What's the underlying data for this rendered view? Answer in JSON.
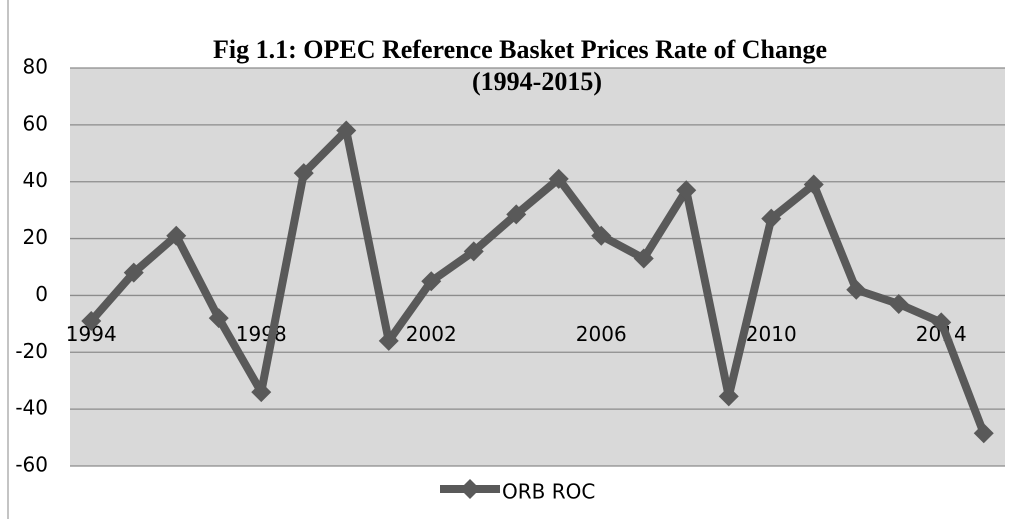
{
  "chart_data": {
    "type": "line",
    "title": "Fig 1.1: OPEC Reference Basket Prices Rate of Change",
    "subtitle": "(1994-2015)",
    "x": [
      1994,
      1995,
      1996,
      1997,
      1998,
      1999,
      2000,
      2001,
      2002,
      2003,
      2004,
      2005,
      2006,
      2007,
      2008,
      2009,
      2010,
      2011,
      2012,
      2013,
      2014,
      2015
    ],
    "series": [
      {
        "name": "ORB ROC",
        "color": "#595959",
        "values": [
          -9,
          8,
          21,
          -8,
          -34,
          43,
          58,
          -16,
          5,
          15.5,
          28.5,
          41,
          21,
          13,
          37,
          -35.5,
          27,
          39,
          2,
          -3,
          -9.5,
          -48.5
        ]
      }
    ],
    "xlim": [
      1993.5,
      2015.5
    ],
    "xticks": [
      1994,
      1998,
      2002,
      2006,
      2010,
      2014
    ],
    "ylim": [
      -60,
      80
    ],
    "yticks": [
      -60,
      -40,
      -20,
      0,
      20,
      40,
      60,
      80
    ],
    "grid": true,
    "legend": "bottom"
  }
}
